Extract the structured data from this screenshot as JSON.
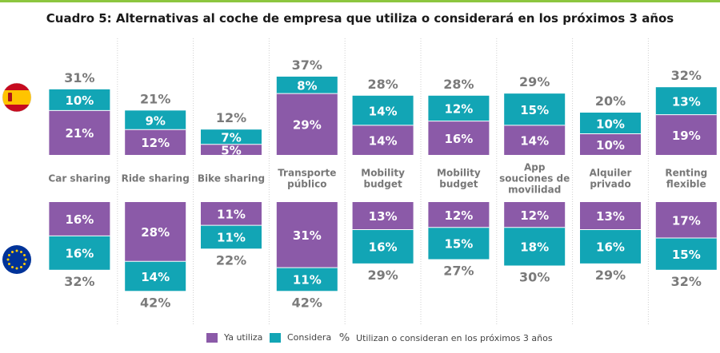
{
  "title": "Cuadro 5: Alternativas al coche de empresa que utiliza o considerará en los próximos 3 años",
  "colors": {
    "ya_utiliza": "#8b5aa8",
    "considera": "#12a5b5",
    "total": "#7a7a7a",
    "accent": "#8dc63f"
  },
  "legend": {
    "ya_utiliza": "Ya utiliza",
    "considera": "Considera",
    "pct_symbol": "%",
    "total": "Utilizan o consideran en los próximos 3 años"
  },
  "chart_data": {
    "type": "bar",
    "title": "Cuadro 5: Alternativas al coche de empresa que utiliza o considerará en los próximos 3 años",
    "categories": [
      "Car sharing",
      "Ride sharing",
      "Bike sharing",
      "Transporte público",
      "Mobility budget",
      "Mobility budget",
      "App souciones de movilidad",
      "Alquiler privado",
      "Renting flexible"
    ],
    "category_lines": [
      [
        "Car sharing"
      ],
      [
        "Ride sharing"
      ],
      [
        "Bike sharing"
      ],
      [
        "Transporte",
        "público"
      ],
      [
        "Mobility",
        "budget"
      ],
      [
        "Mobility",
        "budget"
      ],
      [
        "App",
        "souciones de",
        "movilidad"
      ],
      [
        "Alquiler",
        "privado"
      ],
      [
        "Renting",
        "flexible"
      ]
    ],
    "groups": [
      {
        "name": "España",
        "flag": "spain-flag",
        "series": [
          {
            "name": "Ya utiliza",
            "values": [
              21,
              12,
              5,
              29,
              14,
              16,
              14,
              10,
              19
            ]
          },
          {
            "name": "Considera",
            "values": [
              10,
              9,
              7,
              8,
              14,
              12,
              15,
              10,
              13
            ]
          }
        ],
        "totals": [
          31,
          21,
          12,
          37,
          28,
          28,
          29,
          20,
          32
        ]
      },
      {
        "name": "Europa",
        "flag": "eu-flag",
        "series": [
          {
            "name": "Ya utiliza",
            "values": [
              16,
              28,
              11,
              31,
              13,
              12,
              12,
              13,
              17
            ]
          },
          {
            "name": "Considera",
            "values": [
              16,
              14,
              11,
              11,
              16,
              15,
              18,
              16,
              15
            ]
          }
        ],
        "totals": [
          32,
          42,
          22,
          42,
          29,
          27,
          30,
          29,
          32
        ]
      }
    ],
    "unit": "%"
  }
}
